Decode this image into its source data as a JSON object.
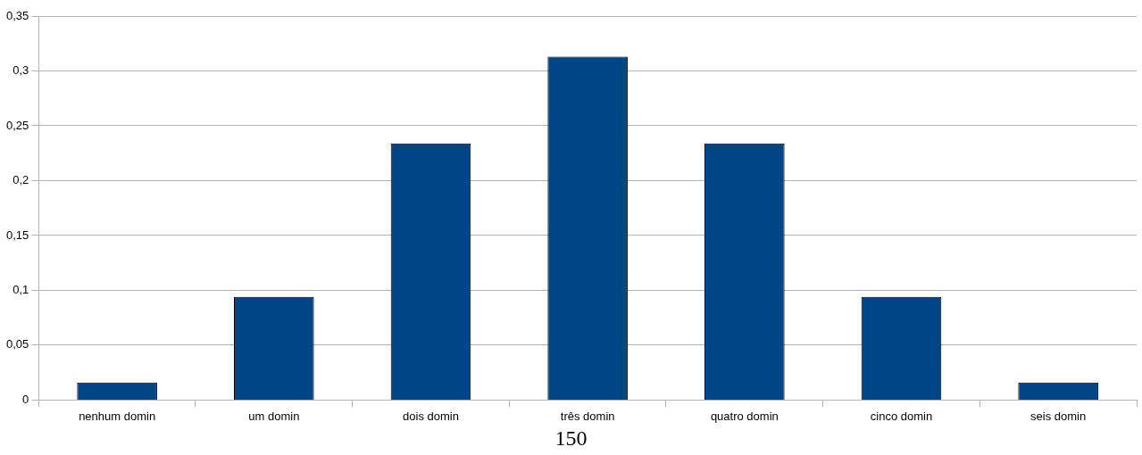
{
  "chart_data": {
    "type": "bar",
    "categories": [
      "nenhum domin",
      "um domin",
      "dois domin",
      "três domin",
      "quatro domin",
      "cinco domin",
      "seis domin"
    ],
    "values": [
      0.016,
      0.094,
      0.234,
      0.313,
      0.234,
      0.094,
      0.016
    ],
    "color": "#004586",
    "ylim": [
      0,
      0.35
    ],
    "yticks": [
      {
        "value": 0,
        "label": "0"
      },
      {
        "value": 0.05,
        "label": "0,05"
      },
      {
        "value": 0.1,
        "label": "0,1"
      },
      {
        "value": 0.15,
        "label": "0,15"
      },
      {
        "value": 0.2,
        "label": "0,2"
      },
      {
        "value": 0.25,
        "label": "0,25"
      },
      {
        "value": 0.3,
        "label": "0,3"
      },
      {
        "value": 0.35,
        "label": "0,35"
      }
    ],
    "grid": "y",
    "legend": false,
    "annotations": [
      "150"
    ]
  }
}
